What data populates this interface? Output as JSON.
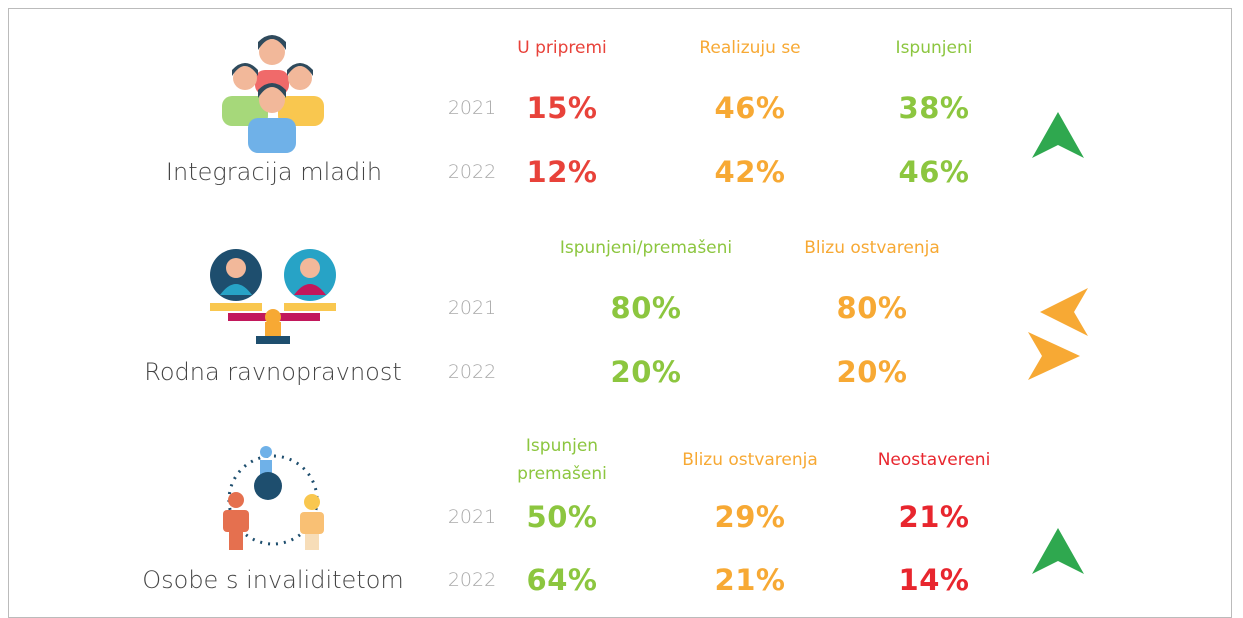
{
  "sections": [
    {
      "label": "Integracija mladih",
      "headers": [
        "U pripremi",
        "Realizuju se",
        "Ispunjeni"
      ],
      "colors": [
        "#e8423a",
        "#f7a934",
        "#8cc63f"
      ],
      "rows": [
        {
          "year": "2021",
          "values": [
            "15%",
            "46%",
            "38%"
          ]
        },
        {
          "year": "2022",
          "values": [
            "12%",
            "42%",
            "46%"
          ]
        }
      ]
    },
    {
      "label": "Rodna ravnopravnost",
      "headers": [
        "Ispunjeni/premašeni",
        "Blizu ostvarenja"
      ],
      "colors": [
        "#8cc63f",
        "#f7a934"
      ],
      "rows": [
        {
          "year": "2021",
          "values": [
            "80%",
            "80%"
          ]
        },
        {
          "year": "2022",
          "values": [
            "20%",
            "20%"
          ]
        }
      ]
    },
    {
      "label": "Osobe s invaliditetom",
      "headers": [
        "Ispunjen premašeni",
        "Blizu ostvarenja",
        "Neostavereni"
      ],
      "colors": [
        "#8cc63f",
        "#f7a934",
        "#e8262e"
      ],
      "rows": [
        {
          "year": "2021",
          "values": [
            "50%",
            "29%",
            "21%"
          ]
        },
        {
          "year": "2022",
          "values": [
            "64%",
            "21%",
            "14%"
          ]
        }
      ]
    }
  ]
}
